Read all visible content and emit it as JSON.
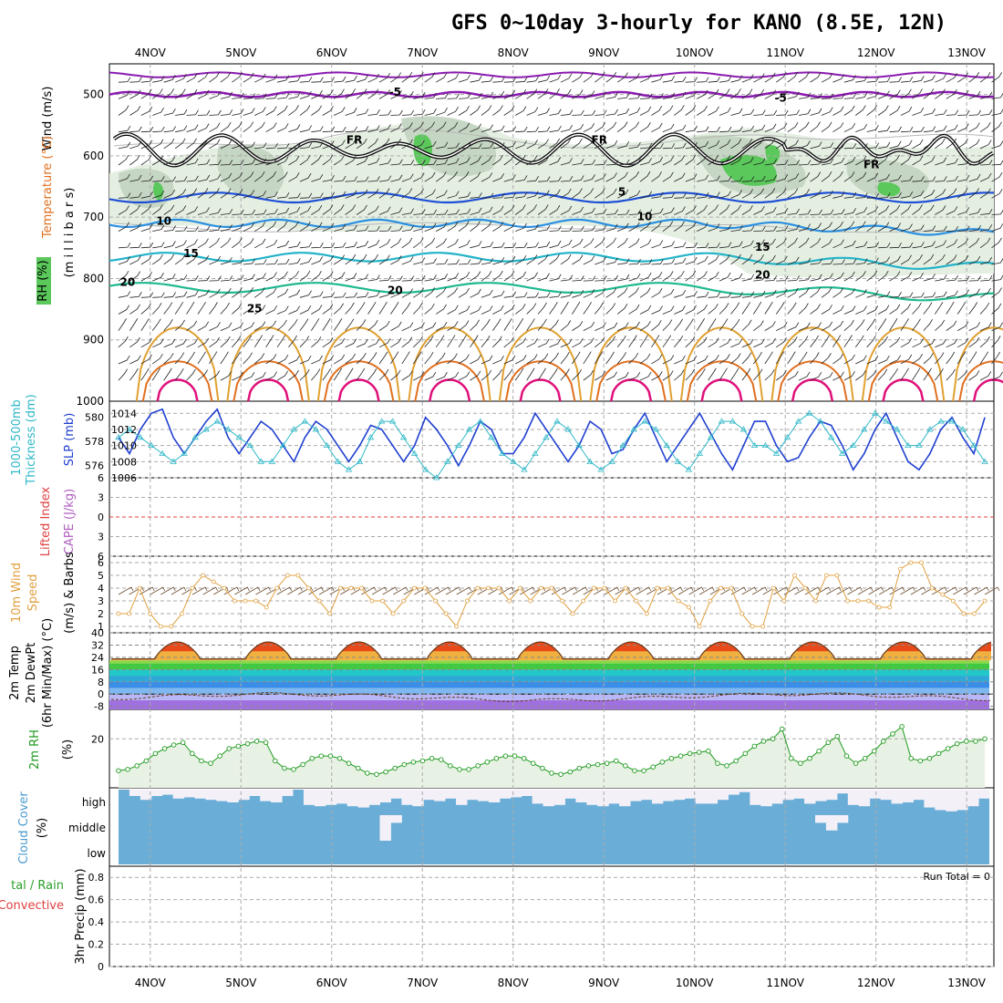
{
  "title": "GFS 0~10day 3-hourly for KANO (8.5E, 12N)",
  "x_axis": {
    "ticks": [
      "4NOV",
      "5NOV",
      "6NOV",
      "7NOV",
      "8NOV",
      "9NOV",
      "10NOV",
      "11NOV",
      "12NOV",
      "13NOV"
    ],
    "range_days": [
      -0.45,
      9.3
    ]
  },
  "colors": {
    "purple": "#8a1ab0",
    "black": "#000000",
    "blue5": "#1f4fd6",
    "blue10": "#2a8fe0",
    "teal15": "#22b3c8",
    "green20": "#1fb890",
    "orange25": "#e0a030",
    "dorange": "#e07020",
    "magenta": "#e0107a",
    "slp": "#1f3fd0",
    "thick": "#30b8c8",
    "wind": "#e0a040",
    "rh": "#1f9a1f",
    "rhfill": "#e8f2e4",
    "cloud": "#6aaed8",
    "grid": "#aaaaaa"
  },
  "panel_labels": {
    "upper_wind": "Wind (m/s)",
    "upper_temp": "Temperature (°C)",
    "upper_rh": "RH (%)",
    "upper_mb": "(m i l l i b a r s)",
    "thick1": "1000-500mb",
    "thick2": "Thickness (dm)",
    "slp": "SLP (mb)",
    "lifted": "Lifted Index",
    "cape": "CAPE (J/kg)",
    "wind10_1": "10m Wind",
    "wind10_2": "Speed",
    "wind10_3": "(m/s) & Barbs",
    "temp_1": "2m Temp",
    "temp_2": "2m DewPt",
    "temp_3": "(6hr Min/Max) (°C)",
    "rh_1": "2m RH",
    "rh_2": "(%)",
    "cloud_1": "Cloud Cover",
    "cloud_2": "(%)",
    "precip_1": "tal / Rain",
    "precip_2": "Convective",
    "precip_3": "3hr Precip (mm)",
    "run_total": "Run Total = 0"
  },
  "upper_air": {
    "type": "heatmap",
    "ylabels": [
      "500",
      "600",
      "700",
      "800",
      "900",
      "1000"
    ],
    "ylim_mb": [
      1000,
      450
    ],
    "contour_labels": [
      {
        "text": "-5",
        "day": 2.7,
        "mb": 502,
        "color": "purple"
      },
      {
        "text": "-5",
        "day": 6.95,
        "mb": 512,
        "color": "purple"
      },
      {
        "text": "FR",
        "day": 2.25,
        "mb": 580,
        "color": "black"
      },
      {
        "text": "FR",
        "day": 4.95,
        "mb": 580,
        "color": "black"
      },
      {
        "text": "FR",
        "day": 7.95,
        "mb": 620,
        "color": "black"
      },
      {
        "text": "5",
        "day": 5.2,
        "mb": 665,
        "color": "blue5"
      },
      {
        "text": "10",
        "day": 0.15,
        "mb": 712,
        "color": "blue10"
      },
      {
        "text": "10",
        "day": 5.45,
        "mb": 705,
        "color": "blue10"
      },
      {
        "text": "15",
        "day": 0.45,
        "mb": 765,
        "color": "teal15"
      },
      {
        "text": "15",
        "day": 6.75,
        "mb": 755,
        "color": "teal15"
      },
      {
        "text": "20",
        "day": -0.25,
        "mb": 812,
        "color": "green20"
      },
      {
        "text": "20",
        "day": 2.7,
        "mb": 825,
        "color": "green20"
      },
      {
        "text": "20",
        "day": 6.75,
        "mb": 800,
        "color": "green20"
      },
      {
        "text": "25",
        "day": 1.15,
        "mb": 855,
        "color": "orange25"
      }
    ]
  },
  "thickness_slp": {
    "type": "line",
    "ylabels_left": [
      "580",
      "578",
      "576"
    ],
    "ylabels_right": [
      "1014",
      "1012",
      "1010",
      "1008",
      "1006"
    ],
    "ylim_slp": [
      1006,
      1015.5
    ],
    "slp_values": [
      1011,
      1009,
      1012,
      1014,
      1014.5,
      1011,
      1009,
      1011,
      1013,
      1014.5,
      1011,
      1009,
      1011,
      1013,
      1012,
      1010,
      1008,
      1011,
      1013,
      1012,
      1010,
      1008,
      1010,
      1012.5,
      1012,
      1010,
      1008,
      1010,
      1013.5,
      1012,
      1010,
      1007.5,
      1010,
      1013,
      1012,
      1009,
      1009,
      1011,
      1014,
      1012,
      1010,
      1008,
      1010,
      1013,
      1012,
      1009,
      1009.5,
      1012,
      1014,
      1011,
      1008,
      1010,
      1012,
      1014,
      1011.5,
      1009,
      1007,
      1010,
      1013,
      1013,
      1010,
      1008,
      1008.5,
      1011,
      1013,
      1012.5,
      1010,
      1007,
      1009,
      1012,
      1014,
      1011,
      1008,
      1007,
      1009,
      1012,
      1013.5,
      1011,
      1009,
      1013.5
    ],
    "thick_values": [
      1011,
      1012,
      1011,
      1010,
      1009,
      1008,
      1009,
      1011,
      1012,
      1013,
      1012,
      1011,
      1010,
      1008,
      1008,
      1010,
      1012,
      1013,
      1012,
      1010,
      1008,
      1007,
      1008,
      1011,
      1013,
      1013,
      1011,
      1009,
      1007,
      1006,
      1008,
      1010,
      1012,
      1013,
      1011,
      1009,
      1008,
      1007,
      1009,
      1011,
      1013,
      1012,
      1010,
      1008,
      1007,
      1008,
      1010,
      1012,
      1013,
      1012,
      1010,
      1008,
      1007,
      1009,
      1011,
      1013,
      1013,
      1012,
      1010,
      1010,
      1009,
      1011,
      1013,
      1014,
      1013,
      1011,
      1009,
      1010,
      1012,
      1014,
      1013,
      1012,
      1010,
      1010,
      1012,
      1013,
      1013,
      1012,
      1010,
      1008
    ]
  },
  "lifted_cape": {
    "type": "line",
    "ylabels": [
      "-6",
      "-3",
      "0",
      "3",
      "6"
    ],
    "ylim": [
      6,
      -6
    ]
  },
  "wind10": {
    "type": "line",
    "ylabels": [
      "6",
      "5",
      "4",
      "3",
      "2",
      "1"
    ],
    "ylim": [
      0.5,
      6.5
    ],
    "values": [
      2,
      2,
      4,
      2,
      1,
      1,
      2,
      4,
      5,
      4.5,
      4,
      3,
      3,
      3,
      2.5,
      4,
      5,
      5,
      4,
      3,
      2,
      4,
      4,
      4,
      3,
      3,
      2,
      3,
      4,
      4,
      3,
      2,
      1,
      3,
      4,
      4,
      4,
      3,
      4,
      3,
      4,
      4,
      3,
      2,
      3,
      4,
      4,
      3,
      4,
      3,
      2,
      4,
      4,
      3,
      2.5,
      1,
      3,
      4,
      4,
      2,
      1,
      1,
      4,
      3,
      5,
      4,
      3,
      5,
      5,
      3,
      3,
      3,
      2.5,
      2.5,
      5.5,
      6,
      6,
      4,
      3.5,
      3,
      2,
      2,
      3
    ]
  },
  "temp2m": {
    "type": "area",
    "ylabels": [
      "40",
      "32",
      "24",
      "16",
      "8",
      "0",
      "-8"
    ],
    "ylim": [
      -10,
      40
    ],
    "max_temp": 34,
    "min_temp": 23
  },
  "rh2m": {
    "type": "area",
    "ylabels": [
      "20"
    ],
    "ylim": [
      0,
      32
    ],
    "values": [
      7,
      7.5,
      9,
      11,
      14,
      16,
      17.5,
      18.5,
      14,
      11,
      10,
      13,
      16,
      17,
      18,
      19,
      18.5,
      11,
      8,
      7.5,
      9.5,
      12,
      13,
      13,
      12,
      10,
      8,
      6,
      5.5,
      6.5,
      8,
      9.5,
      10.5,
      11,
      12,
      11.5,
      9,
      7.5,
      7.5,
      9,
      10.5,
      12,
      13,
      13,
      12,
      10,
      8,
      6,
      5.5,
      6.5,
      8,
      9,
      9.5,
      10,
      11,
      9,
      7,
      7,
      8.5,
      10.5,
      12,
      13,
      14,
      14.5,
      15,
      10,
      9,
      11,
      14,
      17,
      19,
      20,
      24,
      12,
      10,
      12,
      15,
      18.5,
      21,
      13,
      10,
      12,
      15,
      19,
      22,
      25,
      12,
      11,
      12,
      14,
      16,
      18,
      19,
      19,
      20
    ]
  },
  "cloud": {
    "type": "bar",
    "levels": [
      "high",
      "middle",
      "low"
    ],
    "high_values": [
      100,
      75,
      60,
      75,
      80,
      65,
      70,
      65,
      60,
      55,
      50,
      60,
      75,
      55,
      50,
      75,
      100,
      40,
      35,
      40,
      45,
      35,
      30,
      40,
      50,
      65,
      40,
      35,
      60,
      55,
      65,
      40,
      60,
      55,
      50,
      65,
      70,
      75,
      45,
      35,
      40,
      65,
      50,
      40,
      35,
      45,
      35,
      55,
      60,
      45,
      55,
      60,
      65,
      45,
      45,
      60,
      80,
      90,
      40,
      35,
      45,
      60,
      65,
      45,
      55,
      60,
      85,
      40,
      35,
      65,
      60,
      45,
      50,
      60,
      30,
      20,
      15,
      20,
      35,
      65
    ],
    "mid_values": [
      0,
      0,
      0,
      0,
      0,
      0,
      0,
      0,
      0,
      0,
      0,
      0,
      0,
      0,
      0,
      0,
      0,
      0,
      0,
      0,
      0,
      0,
      0,
      0,
      100,
      30,
      0,
      0,
      0,
      0,
      0,
      0,
      0,
      0,
      0,
      0,
      0,
      0,
      0,
      0,
      0,
      0,
      0,
      0,
      0,
      0,
      0,
      0,
      0,
      0,
      0,
      0,
      0,
      0,
      0,
      0,
      0,
      0,
      0,
      0,
      0,
      0,
      0,
      0,
      30,
      60,
      30,
      0,
      0,
      0,
      0,
      0,
      0,
      0,
      0,
      0,
      0,
      0,
      0,
      0
    ]
  },
  "precip": {
    "type": "bar",
    "ylabels": [
      "0.8",
      "0.6",
      "0.4",
      "0.2",
      "0"
    ],
    "ylim": [
      0,
      0.9
    ]
  }
}
